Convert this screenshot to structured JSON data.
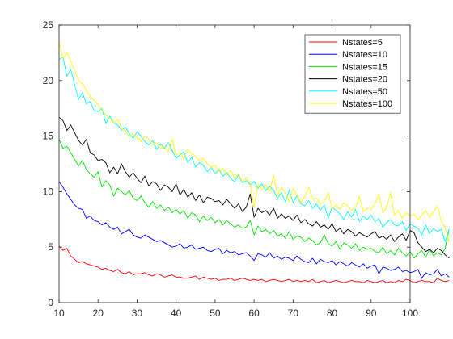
{
  "chart_data": {
    "type": "line",
    "title": "",
    "xlabel": "",
    "ylabel": "",
    "xlim": [
      10,
      100
    ],
    "ylim": [
      0,
      25
    ],
    "x_start": 10,
    "x_step": 1,
    "xticks": [
      10,
      20,
      30,
      40,
      50,
      60,
      70,
      80,
      90,
      100
    ],
    "yticks": [
      0,
      5,
      10,
      15,
      20,
      25
    ],
    "grid": false,
    "legend_position": "top-right",
    "series": [
      {
        "name": "Nstates=5",
        "color": "#ff0000",
        "values": [
          5.1,
          4.7,
          4.9,
          4.2,
          3.9,
          3.6,
          3.7,
          3.5,
          3.4,
          3.3,
          3.2,
          3.0,
          3.1,
          2.9,
          2.8,
          3.0,
          2.7,
          2.6,
          2.8,
          2.5,
          2.6,
          2.6,
          2.7,
          2.5,
          2.4,
          2.6,
          2.5,
          2.3,
          2.4,
          2.5,
          2.3,
          2.3,
          2.2,
          2.2,
          2.3,
          2.4,
          2.1,
          2.3,
          2.2,
          2.1,
          2.2,
          2.0,
          2.1,
          2.1,
          2.2,
          2.0,
          2.1,
          2.2,
          2.1,
          2.0,
          2.1,
          2.0,
          2.1,
          1.9,
          2.0,
          2.1,
          2.0,
          1.9,
          2.0,
          2.1,
          1.9,
          2.0,
          1.9,
          2.0,
          1.9,
          2.1,
          1.8,
          1.9,
          2.0,
          1.8,
          1.9,
          2.0,
          1.9,
          1.8,
          1.9,
          2.0,
          1.9,
          1.9,
          1.8,
          2.0,
          1.9,
          1.8,
          1.9,
          2.0,
          1.8,
          1.9,
          1.8,
          2.0,
          1.9,
          2.1,
          2.0,
          1.8,
          1.9,
          2.0,
          1.9,
          1.9,
          1.8,
          2.2,
          2.0,
          1.9,
          2.0
        ]
      },
      {
        "name": "Nstates=10",
        "color": "#0000ff",
        "values": [
          10.9,
          10.4,
          9.8,
          9.3,
          8.8,
          8.5,
          8.4,
          7.6,
          7.8,
          7.4,
          7.3,
          7.0,
          7.2,
          6.8,
          6.6,
          6.8,
          6.2,
          6.4,
          6.6,
          6.1,
          5.9,
          5.8,
          6.1,
          5.9,
          5.7,
          5.5,
          5.6,
          5.4,
          5.2,
          5.0,
          5.1,
          5.3,
          4.9,
          5.0,
          5.2,
          4.8,
          4.9,
          5.0,
          4.7,
          4.6,
          4.8,
          4.9,
          4.4,
          4.7,
          4.5,
          4.6,
          4.3,
          4.4,
          4.5,
          4.2,
          3.8,
          4.4,
          4.3,
          4.1,
          4.5,
          4.0,
          4.2,
          3.9,
          4.1,
          4.0,
          3.8,
          4.2,
          3.9,
          3.7,
          3.6,
          4.0,
          3.5,
          3.9,
          3.7,
          3.6,
          3.8,
          3.4,
          3.7,
          3.5,
          3.3,
          3.6,
          3.4,
          3.2,
          3.5,
          3.1,
          3.3,
          3.4,
          2.6,
          3.2,
          3.1,
          2.9,
          3.0,
          3.2,
          2.8,
          2.9,
          2.7,
          2.8,
          3.0,
          2.2,
          2.7,
          2.5,
          2.6,
          3.0,
          2.4,
          2.6,
          2.3
        ]
      },
      {
        "name": "Nstates=15",
        "color": "#00e600",
        "values": [
          14.7,
          13.9,
          14.1,
          13.5,
          12.9,
          12.3,
          12.8,
          12.0,
          11.6,
          11.3,
          11.8,
          10.4,
          11.0,
          10.6,
          9.6,
          10.3,
          10.0,
          9.7,
          10.1,
          9.4,
          9.2,
          9.6,
          9.0,
          8.6,
          9.1,
          8.5,
          8.8,
          8.3,
          8.6,
          8.1,
          8.4,
          8.0,
          8.3,
          7.6,
          8.1,
          7.9,
          7.3,
          7.8,
          7.4,
          7.7,
          7.2,
          7.5,
          7.0,
          7.4,
          7.1,
          6.8,
          7.0,
          6.7,
          6.8,
          7.4,
          6.1,
          6.9,
          6.4,
          6.6,
          6.2,
          6.5,
          6.0,
          6.2,
          5.8,
          6.4,
          5.7,
          6.0,
          5.9,
          5.5,
          5.8,
          5.6,
          5.2,
          5.4,
          6.1,
          5.3,
          5.1,
          5.5,
          4.8,
          5.4,
          5.2,
          4.9,
          5.3,
          4.7,
          5.0,
          4.8,
          4.9,
          4.6,
          4.5,
          5.0,
          4.4,
          4.7,
          4.3,
          4.9,
          4.5,
          4.2,
          4.6,
          4.0,
          4.4,
          4.7,
          4.1,
          4.8,
          4.2,
          4.5,
          4.3,
          4.9,
          6.6
        ]
      },
      {
        "name": "Nstates=20",
        "color": "#000000",
        "values": [
          16.7,
          16.4,
          15.5,
          16.0,
          15.3,
          14.6,
          14.2,
          14.7,
          13.5,
          13.3,
          12.8,
          12.9,
          12.6,
          11.7,
          12.2,
          11.6,
          12.5,
          11.8,
          11.3,
          11.7,
          11.2,
          10.8,
          11.4,
          10.5,
          10.9,
          10.7,
          10.1,
          10.6,
          10.4,
          10.0,
          10.7,
          9.7,
          10.2,
          9.5,
          9.9,
          9.2,
          9.7,
          9.0,
          9.5,
          9.4,
          9.1,
          9.2,
          8.8,
          9.3,
          8.9,
          8.5,
          8.9,
          8.2,
          8.6,
          9.8,
          7.7,
          8.5,
          8.1,
          8.3,
          7.9,
          8.5,
          7.6,
          8.0,
          7.6,
          7.8,
          7.4,
          7.9,
          7.2,
          7.5,
          7.1,
          6.9,
          7.3,
          6.8,
          7.0,
          6.6,
          7.1,
          6.4,
          6.7,
          6.2,
          6.6,
          6.4,
          6.0,
          6.3,
          6.1,
          5.9,
          6.2,
          6.4,
          5.8,
          6.0,
          5.7,
          6.1,
          5.5,
          5.9,
          6.2,
          5.6,
          6.5,
          6.3,
          5.4,
          5.0,
          4.6,
          4.8,
          4.5,
          4.9,
          4.7,
          4.3,
          4.0
        ]
      },
      {
        "name": "Nstates=50",
        "color": "#00ffff",
        "values": [
          21.9,
          22.1,
          20.4,
          21.0,
          19.6,
          18.3,
          18.9,
          17.9,
          18.1,
          17.3,
          17.2,
          17.5,
          16.1,
          16.8,
          16.2,
          16.0,
          15.5,
          15.8,
          15.2,
          14.8,
          15.4,
          15.0,
          14.5,
          14.2,
          14.6,
          13.8,
          14.3,
          13.9,
          14.4,
          13.7,
          13.0,
          13.3,
          13.6,
          12.6,
          13.1,
          12.2,
          12.6,
          12.4,
          11.8,
          12.2,
          11.6,
          12.0,
          11.4,
          11.7,
          11.2,
          10.9,
          11.5,
          10.8,
          11.0,
          10.6,
          10.9,
          10.3,
          10.7,
          10.1,
          10.5,
          10.1,
          9.4,
          9.9,
          9.1,
          10.1,
          9.0,
          9.6,
          8.9,
          8.7,
          9.2,
          8.5,
          8.9,
          8.3,
          8.8,
          7.6,
          8.6,
          8.3,
          8.0,
          7.5,
          8.2,
          7.7,
          8.4,
          7.3,
          7.8,
          7.5,
          7.9,
          7.3,
          7.6,
          6.8,
          7.2,
          7.5,
          7.0,
          6.9,
          7.3,
          6.5,
          7.1,
          6.9,
          6.7,
          6.1,
          7.0,
          6.2,
          6.7,
          6.4,
          6.6,
          5.5,
          6.6
        ]
      },
      {
        "name": "Nstates=100",
        "color": "#ffff00",
        "values": [
          23.5,
          22.0,
          22.5,
          21.8,
          20.9,
          20.0,
          19.7,
          19.1,
          18.6,
          18.2,
          17.9,
          17.3,
          16.9,
          16.6,
          16.2,
          16.5,
          15.7,
          15.4,
          15.0,
          15.2,
          14.9,
          14.5,
          15.0,
          14.7,
          14.2,
          14.4,
          13.9,
          14.0,
          13.6,
          14.7,
          13.3,
          13.5,
          12.9,
          13.8,
          13.4,
          13.2,
          12.7,
          13.0,
          12.5,
          12.2,
          12.4,
          11.8,
          12.1,
          11.5,
          11.9,
          11.2,
          11.6,
          10.9,
          11.3,
          10.7,
          8.6,
          10.7,
          10.2,
          10.6,
          10.0,
          11.5,
          9.6,
          10.4,
          9.9,
          9.1,
          10.3,
          9.7,
          9.0,
          9.6,
          10.4,
          9.3,
          9.4,
          8.9,
          9.1,
          9.9,
          8.5,
          8.8,
          8.4,
          9.0,
          8.7,
          8.3,
          8.6,
          9.6,
          8.2,
          8.5,
          8.4,
          8.9,
          9.8,
          8.1,
          8.6,
          9.9,
          7.9,
          8.3,
          7.6,
          8.1,
          7.8,
          8.0,
          7.5,
          7.9,
          8.3,
          7.7,
          8.2,
          8.7,
          7.3,
          6.8,
          5.4
        ]
      }
    ]
  }
}
